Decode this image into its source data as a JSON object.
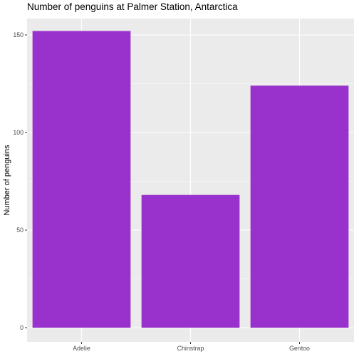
{
  "chart_data": {
    "type": "bar",
    "title": "Number of penguins at Palmer Station, Antarctica",
    "xlabel": "",
    "ylabel": "Number of penguins",
    "categories": [
      "Adelie",
      "Chinstrap",
      "Gentoo"
    ],
    "values": [
      152,
      68,
      124
    ],
    "ylim": [
      0,
      160
    ],
    "yticks": [
      0,
      50,
      100,
      150
    ],
    "bar_color": "#9932CC",
    "panel_color": "#EBEBEB",
    "grid": true,
    "legend": "none"
  }
}
